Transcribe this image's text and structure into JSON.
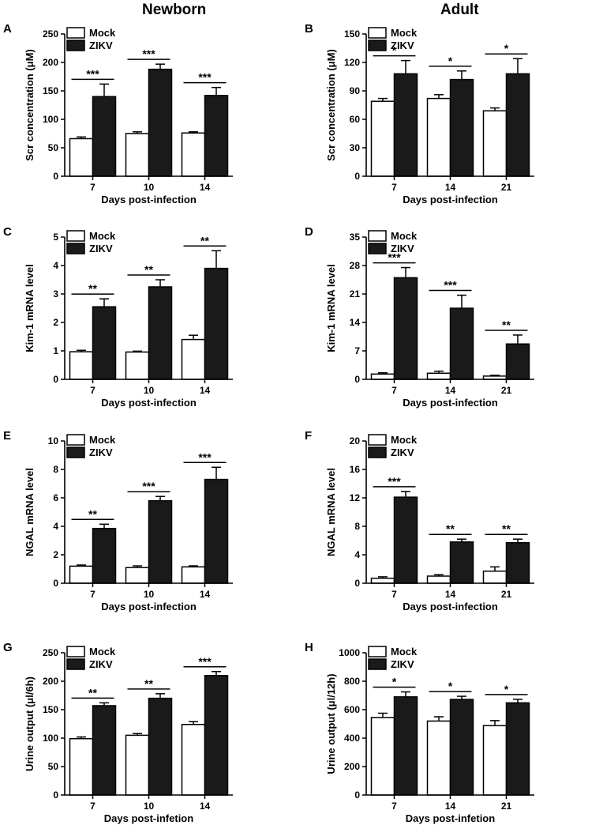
{
  "columns": {
    "newborn": "Newborn",
    "adult": "Adult"
  },
  "chart_data": [
    {
      "type": "bar",
      "panel": "A",
      "legend": [
        "Mock",
        "ZIKV"
      ],
      "categories": [
        "7",
        "10",
        "14"
      ],
      "series": [
        {
          "name": "Mock",
          "values": [
            66,
            75,
            76
          ],
          "errors": [
            3,
            3,
            2
          ]
        },
        {
          "name": "ZIKV",
          "values": [
            140,
            188,
            142
          ],
          "errors": [
            22,
            9,
            14
          ]
        }
      ],
      "significance": [
        "***",
        "***",
        "***"
      ],
      "xlabel": "Days post-infection",
      "ylabel": "Scr concentration (μM)",
      "ylim": [
        0,
        250
      ],
      "yticks": [
        "0",
        "50",
        "100",
        "150",
        "200",
        "250"
      ]
    },
    {
      "type": "bar",
      "panel": "B",
      "legend": [
        "Mock",
        "ZIKV"
      ],
      "categories": [
        "7",
        "14",
        "21"
      ],
      "series": [
        {
          "name": "Mock",
          "values": [
            79,
            82,
            69
          ],
          "errors": [
            3,
            4,
            3
          ]
        },
        {
          "name": "ZIKV",
          "values": [
            108,
            102,
            108
          ],
          "errors": [
            14,
            9,
            16
          ]
        }
      ],
      "significance": [
        "*",
        "*",
        "*"
      ],
      "xlabel": "Days post-infection",
      "ylabel": "Scr concentration (μM)",
      "ylim": [
        0,
        150
      ],
      "yticks": [
        "0",
        "30",
        "60",
        "90",
        "120",
        "150"
      ]
    },
    {
      "type": "bar",
      "panel": "C",
      "legend": [
        "Mock",
        "ZIKV"
      ],
      "categories": [
        "7",
        "10",
        "14"
      ],
      "series": [
        {
          "name": "Mock",
          "values": [
            0.97,
            0.96,
            1.4
          ],
          "errors": [
            0.05,
            0.03,
            0.15
          ]
        },
        {
          "name": "ZIKV",
          "values": [
            2.55,
            3.25,
            3.9
          ],
          "errors": [
            0.28,
            0.25,
            0.62
          ]
        }
      ],
      "significance": [
        "**",
        "**",
        "**"
      ],
      "xlabel": "Days post-infection",
      "ylabel": "Kim-1 mRNA level",
      "ylim": [
        0,
        5
      ],
      "yticks": [
        "0",
        "1",
        "2",
        "3",
        "4",
        "5"
      ]
    },
    {
      "type": "bar",
      "panel": "D",
      "legend": [
        "Mock",
        "ZIKV"
      ],
      "categories": [
        "7",
        "14",
        "21"
      ],
      "series": [
        {
          "name": "Mock",
          "values": [
            1.3,
            1.5,
            0.8
          ],
          "errors": [
            0.3,
            0.5,
            0.2
          ]
        },
        {
          "name": "ZIKV",
          "values": [
            25,
            17.5,
            8.7
          ],
          "errors": [
            2.5,
            3.2,
            2.2
          ]
        }
      ],
      "significance": [
        "***",
        "***",
        "**"
      ],
      "xlabel": "Days post-infection",
      "ylabel": "Kim-1 mRNA level",
      "ylim": [
        0,
        35
      ],
      "yticks": [
        "0",
        "7",
        "14",
        "21",
        "28",
        "35"
      ]
    },
    {
      "type": "bar",
      "panel": "E",
      "legend": [
        "Mock",
        "ZIKV"
      ],
      "categories": [
        "7",
        "10",
        "14"
      ],
      "series": [
        {
          "name": "Mock",
          "values": [
            1.2,
            1.1,
            1.15
          ],
          "errors": [
            0.08,
            0.12,
            0.07
          ]
        },
        {
          "name": "ZIKV",
          "values": [
            3.85,
            5.8,
            7.3
          ],
          "errors": [
            0.3,
            0.3,
            0.85
          ]
        }
      ],
      "significance": [
        "**",
        "***",
        "***"
      ],
      "xlabel": "Days post-infection",
      "ylabel": "NGAL mRNA level",
      "ylim": [
        0,
        10
      ],
      "yticks": [
        "0",
        "2",
        "4",
        "6",
        "8",
        "10"
      ]
    },
    {
      "type": "bar",
      "panel": "F",
      "legend": [
        "Mock",
        "ZIKV"
      ],
      "categories": [
        "7",
        "14",
        "21"
      ],
      "series": [
        {
          "name": "Mock",
          "values": [
            0.7,
            1.0,
            1.7
          ],
          "errors": [
            0.2,
            0.2,
            0.6
          ]
        },
        {
          "name": "ZIKV",
          "values": [
            12.1,
            5.8,
            5.7
          ],
          "errors": [
            0.8,
            0.4,
            0.5
          ]
        }
      ],
      "significance": [
        "***",
        "**",
        "**"
      ],
      "xlabel": "Days post-infection",
      "ylabel": "NGAL mRNA level",
      "ylim": [
        0,
        20
      ],
      "yticks": [
        "0",
        "4",
        "8",
        "12",
        "16",
        "20"
      ]
    },
    {
      "type": "bar",
      "panel": "G",
      "legend": [
        "Mock",
        "ZIKV"
      ],
      "categories": [
        "7",
        "10",
        "14"
      ],
      "series": [
        {
          "name": "Mock",
          "values": [
            99,
            105,
            124
          ],
          "errors": [
            3,
            3,
            5
          ]
        },
        {
          "name": "ZIKV",
          "values": [
            157,
            170,
            210
          ],
          "errors": [
            5,
            8,
            7
          ]
        }
      ],
      "significance": [
        "**",
        "**",
        "***"
      ],
      "xlabel": "Days post-infetion",
      "ylabel": "Urine output (μl/6h)",
      "ylim": [
        0,
        250
      ],
      "yticks": [
        "0",
        "50",
        "100",
        "150",
        "200",
        "250"
      ]
    },
    {
      "type": "bar",
      "panel": "H",
      "legend": [
        "Mock",
        "ZIKV"
      ],
      "categories": [
        "7",
        "14",
        "21"
      ],
      "series": [
        {
          "name": "Mock",
          "values": [
            545,
            520,
            488
          ],
          "errors": [
            30,
            30,
            35
          ]
        },
        {
          "name": "ZIKV",
          "values": [
            690,
            672,
            648
          ],
          "errors": [
            35,
            22,
            25
          ]
        }
      ],
      "significance": [
        "*",
        "*",
        "*"
      ],
      "xlabel": "Days post-infetion",
      "ylabel": "Urine output (μl/12h)",
      "ylim": [
        0,
        1000
      ],
      "yticks": [
        "0",
        "200",
        "400",
        "600",
        "800",
        "1000"
      ]
    }
  ]
}
